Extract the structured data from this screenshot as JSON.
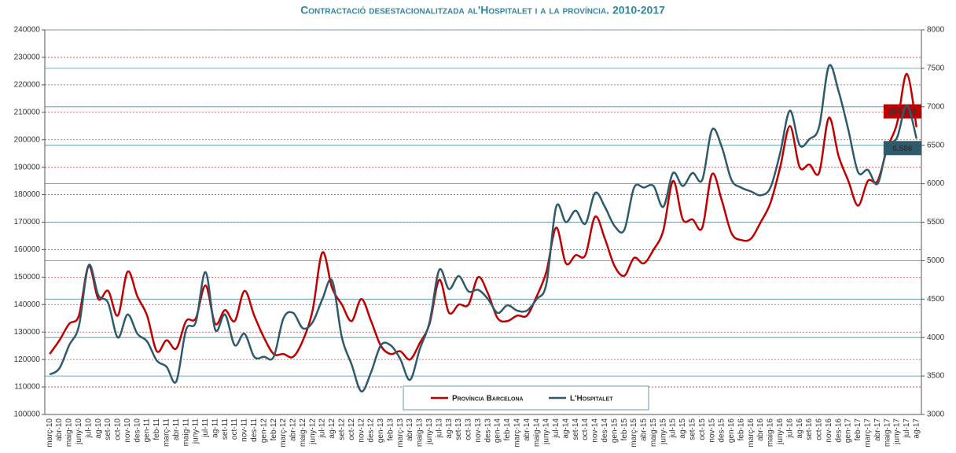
{
  "chart_data": {
    "type": "line",
    "title": "Contractació desestacionalitzada al'Hospitalet i a la província. 2010-2017",
    "categories": [
      "març-10",
      "abr-10",
      "maig-10",
      "juny-10",
      "jul-10",
      "ag-10",
      "set-10",
      "oct-10",
      "nov-10",
      "des-10",
      "gen-11",
      "feb-11",
      "març-11",
      "abr-11",
      "maig-11",
      "juny-11",
      "jul-11",
      "ag-11",
      "set-11",
      "oct-11",
      "nov-11",
      "des-11",
      "gen-12",
      "feb-12",
      "març-12",
      "abr-12",
      "maig-12",
      "juny-12",
      "jul-12",
      "ag-12",
      "set-12",
      "oct-12",
      "nov-12",
      "des-12",
      "gen-13",
      "feb-13",
      "març-13",
      "abr-13",
      "maig-13",
      "juny-13",
      "jul-13",
      "ag-13",
      "set-13",
      "oct-13",
      "nov-13",
      "des-13",
      "gen-14",
      "feb-14",
      "març-14",
      "abr-14",
      "maig-14",
      "juny-14",
      "jul-14",
      "ag-14",
      "set-14",
      "oct-14",
      "nov-14",
      "des-14",
      "gen-15",
      "feb-15",
      "març-15",
      "abr-15",
      "maig-15",
      "juny-15",
      "jul-15",
      "ag-15",
      "set-15",
      "oct-15",
      "nov-15",
      "des-15",
      "gen-16",
      "feb-16",
      "març-16",
      "abr-16",
      "maig-16",
      "juny-16",
      "jul-16",
      "ag-16",
      "set-16",
      "oct-16",
      "nov-16",
      "des-16",
      "gen-17",
      "feb-17",
      "març-17",
      "abr-17",
      "maig-17",
      "juny-17",
      "jul-17",
      "ag-17"
    ],
    "series": [
      {
        "name": "Província Barcelona",
        "color": "#c00000",
        "axis": "y",
        "values": [
          122000,
          127000,
          133000,
          136000,
          154000,
          142000,
          145000,
          136000,
          152000,
          143000,
          136000,
          123000,
          127000,
          124000,
          134000,
          135000,
          147000,
          133000,
          138000,
          134000,
          145000,
          136000,
          128000,
          122000,
          122000,
          121000,
          127000,
          138000,
          159000,
          146000,
          140000,
          134000,
          142000,
          134000,
          125000,
          122000,
          123000,
          120000,
          126000,
          133000,
          149000,
          137000,
          140000,
          140000,
          150000,
          144000,
          135000,
          134000,
          136000,
          136000,
          143000,
          152000,
          168000,
          155000,
          158000,
          158000,
          172000,
          164000,
          154000,
          150500,
          157000,
          155000,
          160000,
          167000,
          185000,
          171000,
          171000,
          168000,
          187500,
          178000,
          166000,
          163500,
          164000,
          170000,
          177000,
          190000,
          205000,
          190000,
          191000,
          188000,
          208000,
          194000,
          185000,
          176000,
          185000,
          185000,
          197000,
          206000,
          224000,
          204612
        ],
        "value_labels": [
          null,
          null,
          null,
          null,
          null,
          null,
          null,
          null,
          null,
          null,
          null,
          null,
          null,
          null,
          null,
          null,
          null,
          null,
          null,
          null,
          null,
          null,
          null,
          null,
          null,
          null,
          null,
          null,
          null,
          null,
          null,
          null,
          null,
          null,
          null,
          null,
          null,
          null,
          null,
          null,
          null,
          null,
          null,
          null,
          null,
          null,
          null,
          null,
          null,
          null,
          null,
          null,
          null,
          null,
          null,
          null,
          null,
          null,
          null,
          null,
          null,
          null,
          null,
          null,
          null,
          null,
          null,
          null,
          null,
          null,
          null,
          null,
          null,
          null,
          null,
          null,
          null,
          null,
          null,
          null,
          null,
          null,
          null,
          null,
          null,
          null,
          null,
          null,
          null,
          "204.612"
        ]
      },
      {
        "name": "L'Hospitalet",
        "color": "#2e5b6c",
        "axis": "y2",
        "values": [
          3520,
          3600,
          3900,
          4150,
          4940,
          4550,
          4450,
          4000,
          4300,
          4050,
          3950,
          3700,
          3620,
          3430,
          4100,
          4200,
          4850,
          4100,
          4300,
          3900,
          4050,
          3750,
          3750,
          3750,
          4250,
          4320,
          4120,
          4200,
          4500,
          4740,
          4000,
          3650,
          3300,
          3550,
          3900,
          3900,
          3720,
          3450,
          3850,
          4200,
          4880,
          4630,
          4800,
          4600,
          4620,
          4500,
          4320,
          4420,
          4350,
          4350,
          4500,
          4700,
          5700,
          5500,
          5650,
          5480,
          5880,
          5700,
          5450,
          5400,
          5950,
          5950,
          5970,
          5700,
          6140,
          5970,
          6140,
          6050,
          6700,
          6480,
          6050,
          5950,
          5900,
          5850,
          5950,
          6400,
          6950,
          6500,
          6580,
          6740,
          7530,
          7200,
          6700,
          6150,
          6180,
          6000,
          6480,
          6600,
          7020,
          6586
        ],
        "value_labels": [
          null,
          null,
          null,
          null,
          null,
          null,
          null,
          null,
          null,
          null,
          null,
          null,
          null,
          null,
          null,
          null,
          null,
          null,
          null,
          null,
          null,
          null,
          null,
          null,
          null,
          null,
          null,
          null,
          null,
          null,
          null,
          null,
          null,
          null,
          null,
          null,
          null,
          null,
          null,
          null,
          null,
          null,
          null,
          null,
          null,
          null,
          null,
          null,
          null,
          null,
          null,
          null,
          null,
          null,
          null,
          null,
          null,
          null,
          null,
          null,
          null,
          null,
          null,
          null,
          null,
          null,
          null,
          null,
          null,
          null,
          null,
          null,
          null,
          null,
          null,
          null,
          null,
          null,
          null,
          null,
          null,
          null,
          null,
          null,
          null,
          null,
          null,
          null,
          null,
          "6.586"
        ]
      }
    ],
    "ylim": [
      100000,
      240000
    ],
    "yticks": [
      100000,
      110000,
      120000,
      130000,
      140000,
      150000,
      160000,
      170000,
      180000,
      190000,
      200000,
      210000,
      220000,
      230000,
      240000
    ],
    "y2lim": [
      3000,
      8000
    ],
    "y2ticks": [
      3000,
      3500,
      4000,
      4500,
      5000,
      5500,
      6000,
      6500,
      7000,
      7500,
      8000
    ],
    "grid": true,
    "legend": "bottom"
  }
}
